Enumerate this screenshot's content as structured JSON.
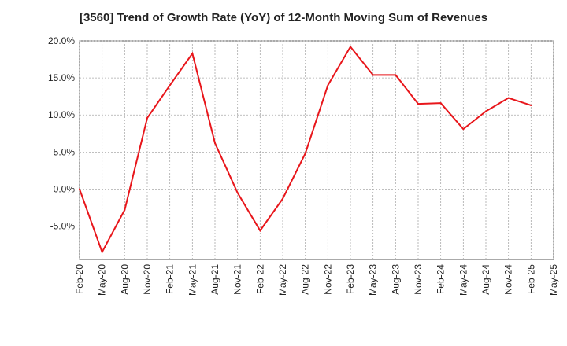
{
  "chart_data": {
    "type": "line",
    "title": "[3560]  Trend of Growth Rate (YoY) of 12-Month Moving Sum of Revenues",
    "xlabel": "",
    "ylabel": "",
    "x": [
      "Feb-20",
      "May-20",
      "Aug-20",
      "Nov-20",
      "Feb-21",
      "May-21",
      "Aug-21",
      "Nov-21",
      "Feb-22",
      "May-22",
      "Aug-22",
      "Nov-22",
      "Feb-23",
      "May-23",
      "Aug-23",
      "Nov-23",
      "Feb-24",
      "May-24",
      "Aug-24",
      "Nov-24",
      "Feb-25"
    ],
    "x_tick_labels": [
      "Feb-20",
      "May-20",
      "Aug-20",
      "Nov-20",
      "Feb-21",
      "May-21",
      "Aug-21",
      "Nov-21",
      "Feb-22",
      "May-22",
      "Aug-22",
      "Nov-22",
      "Feb-23",
      "May-23",
      "Aug-23",
      "Nov-23",
      "Feb-24",
      "May-24",
      "Aug-24",
      "Nov-24",
      "Feb-25",
      "May-25"
    ],
    "y_tick_labels": [
      "20.0%",
      "15.0%",
      "10.0%",
      "5.0%",
      "0.0%",
      "-5.0%"
    ],
    "y_ticks": [
      20,
      15,
      10,
      5,
      0,
      -5
    ],
    "ylim": [
      -9.5,
      20
    ],
    "grid": true,
    "legend": "none",
    "series": [
      {
        "color": "#e8161b",
        "values": [
          0.0,
          -8.5,
          -2.8,
          9.6,
          14.0,
          18.3,
          6.2,
          -0.5,
          -5.6,
          -1.3,
          4.8,
          14.0,
          19.2,
          15.4,
          15.4,
          11.5,
          11.6,
          8.1,
          10.5,
          12.3,
          11.3
        ]
      }
    ]
  }
}
